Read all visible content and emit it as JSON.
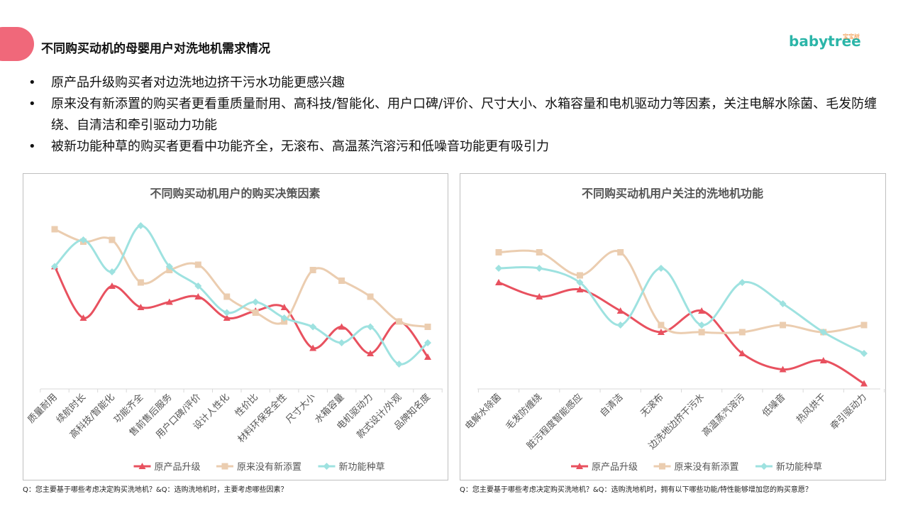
{
  "header": {
    "title": "不同购买动机的母婴用户对洗地机需求情况",
    "logo": "babytree",
    "logo_cn": "宝宝树"
  },
  "bullets": [
    "原产品升级购买者对边洗地边挤干污水功能更感兴趣",
    "原来没有新添置的购买者更看重质量耐用、高科技/智能化、用户口碑/评价、尺寸大小、水箱容量和电机驱动力等因素，关注电解水除菌、毛发防缠绕、自清洁和牵引驱动力功能",
    "被新功能种草的购买者更看中功能齐全，无滚布、高温蒸汽溶污和低噪音功能更有吸引力"
  ],
  "chart_data": [
    {
      "type": "line",
      "title": "不同购买动机用户的购买决策因素",
      "categories": [
        "质量耐用",
        "续航时长",
        "高科技/智能化",
        "功能齐全",
        "售前售后服务",
        "用户口碑/评价",
        "设计人性化",
        "性价比",
        "材料环保安全性",
        "尺寸大小",
        "水箱容量",
        "电机驱动力",
        "款式设计/外观",
        "品牌知名度"
      ],
      "series": [
        {
          "name": "原产品升级",
          "color": "#e8515f",
          "marker": "triangle",
          "values": [
            69,
            40,
            58,
            46,
            49,
            52,
            40,
            44,
            46,
            23,
            35,
            20,
            38,
            18
          ]
        },
        {
          "name": "原来没有新添置",
          "color": "#ebcdb0",
          "marker": "square",
          "values": [
            90,
            83,
            84,
            60,
            67,
            70,
            52,
            43,
            38,
            67,
            61,
            52,
            38,
            35
          ]
        },
        {
          "name": "新功能种草",
          "color": "#9ee2e0",
          "marker": "diamond",
          "values": [
            69,
            84,
            66,
            92,
            69,
            58,
            43,
            49,
            40,
            35,
            26,
            35,
            14,
            26
          ]
        }
      ],
      "footnote": "Q：您主要基于哪些考虑决定购买洗地机？&Q：选购洗地机时，主要考虑哪些因素？"
    },
    {
      "type": "line",
      "title": "不同购买动机用户关注的洗地机功能",
      "categories": [
        "电解水除菌",
        "毛发防缠绕",
        "脏污程度智能感应",
        "自清洁",
        "无滚布",
        "边洗地边挤干污水",
        "高温蒸汽溶污",
        "低噪音",
        "热风烘干",
        "牵引驱动力"
      ],
      "series": [
        {
          "name": "原产品升级",
          "color": "#e8515f",
          "marker": "triangle",
          "values": [
            60,
            52,
            56,
            44,
            32,
            44,
            20,
            11,
            16,
            3
          ]
        },
        {
          "name": "原来没有新添置",
          "color": "#ebcdb0",
          "marker": "square",
          "values": [
            77,
            77,
            64,
            77,
            36,
            32,
            32,
            36,
            32,
            36
          ]
        },
        {
          "name": "新功能种草",
          "color": "#9ee2e0",
          "marker": "diamond",
          "values": [
            68,
            68,
            60,
            36,
            68,
            36,
            60,
            48,
            32,
            20
          ]
        }
      ],
      "footnote": "Q：您主要基于哪些考虑决定购买洗地机？&Q：选购洗地机时，拥有以下哪些功能/特性能够增加您的购买意愿？"
    }
  ]
}
